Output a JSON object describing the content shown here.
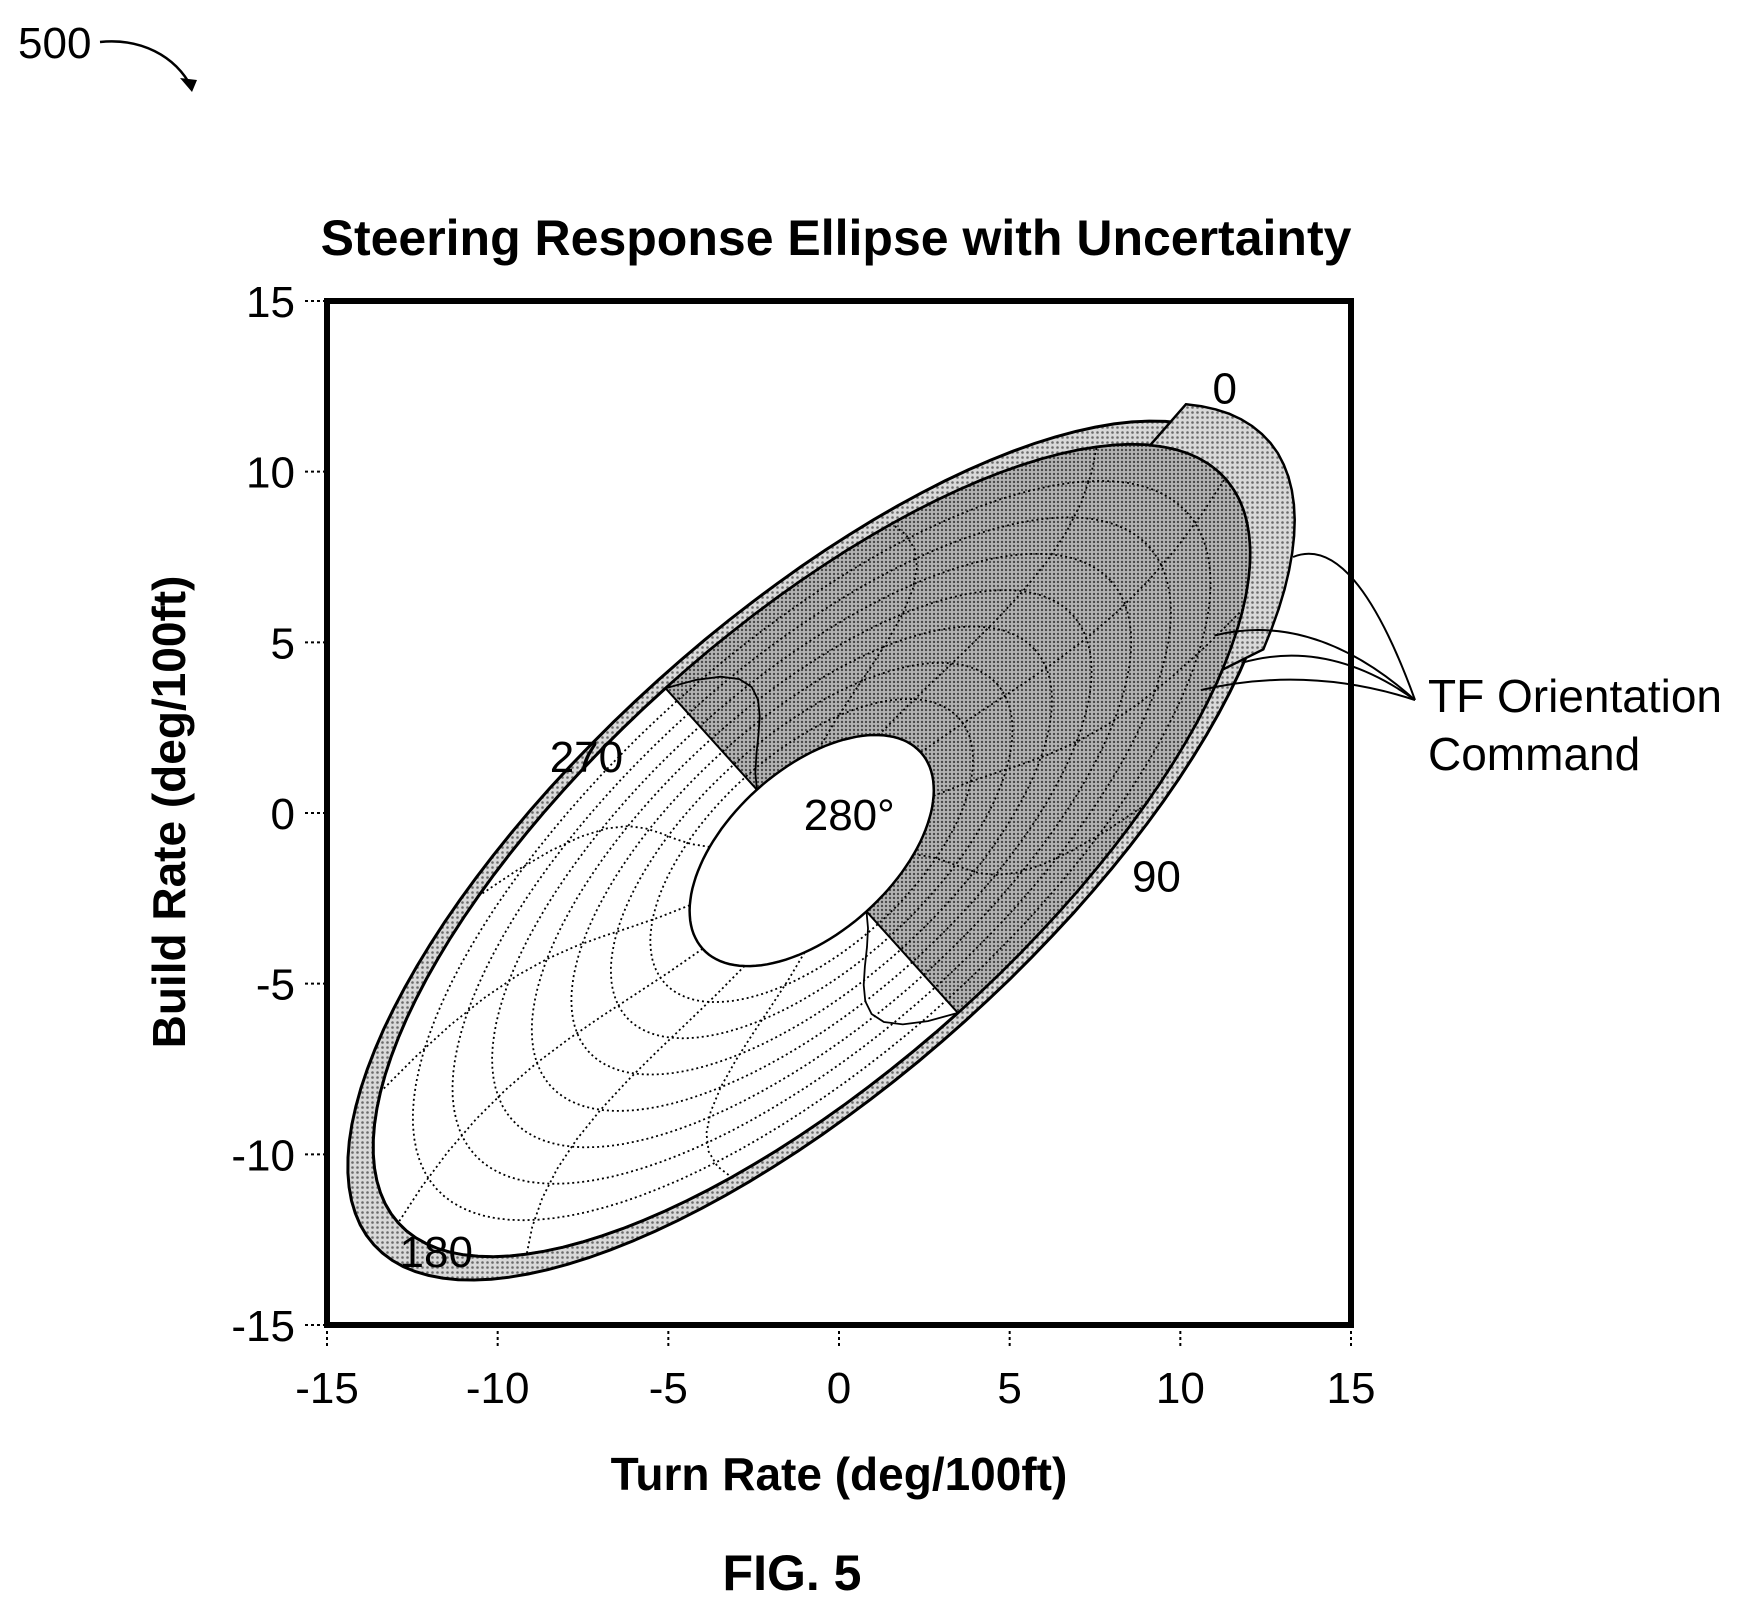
{
  "figure": {
    "reference_number": "500",
    "caption": "FIG. 5"
  },
  "chart_data": {
    "type": "line",
    "title": "Steering Response Ellipse with Uncertainty",
    "xlabel": "Turn Rate (deg/100ft)",
    "ylabel": "Build Rate (deg/100ft)",
    "xlim": [
      -15,
      15
    ],
    "ylim": [
      -15,
      15
    ],
    "xticks": [
      -15,
      -10,
      -5,
      0,
      5,
      10,
      15
    ],
    "yticks": [
      -15,
      -10,
      -5,
      0,
      5,
      10,
      15
    ],
    "grid": false,
    "ellipse": {
      "center": [
        -0.8,
        -1.1
      ],
      "outer_semi_major": 16.3,
      "outer_semi_minor": 6.4,
      "inner_semi_major": 4.3,
      "inner_semi_minor": 2.4,
      "rotation_deg": 42,
      "contour_rings": 7,
      "radial_spokes_deg": [
        0,
        30,
        60,
        90,
        120,
        150,
        180,
        210,
        240,
        270,
        300,
        330
      ]
    },
    "uncertainty_region": {
      "from_deg": 270,
      "to_deg": 90,
      "direction": "through 0"
    },
    "angle_labels": [
      {
        "text": "0",
        "x": 11.3,
        "y": 12.0
      },
      {
        "text": "90",
        "x": 9.3,
        "y": -2.3
      },
      {
        "text": "180",
        "x": -11.8,
        "y": -13.3
      },
      {
        "text": "270",
        "x": -7.4,
        "y": 1.2
      },
      {
        "text": "280°",
        "x": 0.3,
        "y": -0.5
      }
    ],
    "annotation": {
      "line1": "TF Orientation",
      "line2": "Command",
      "pointer_targets": [
        [
          13.3,
          7.5
        ],
        [
          11.0,
          5.2
        ],
        [
          11.8,
          4.4
        ],
        [
          10.6,
          3.6
        ]
      ]
    },
    "colors": {
      "shading": "#9a9a9a",
      "line": "#000000"
    }
  }
}
